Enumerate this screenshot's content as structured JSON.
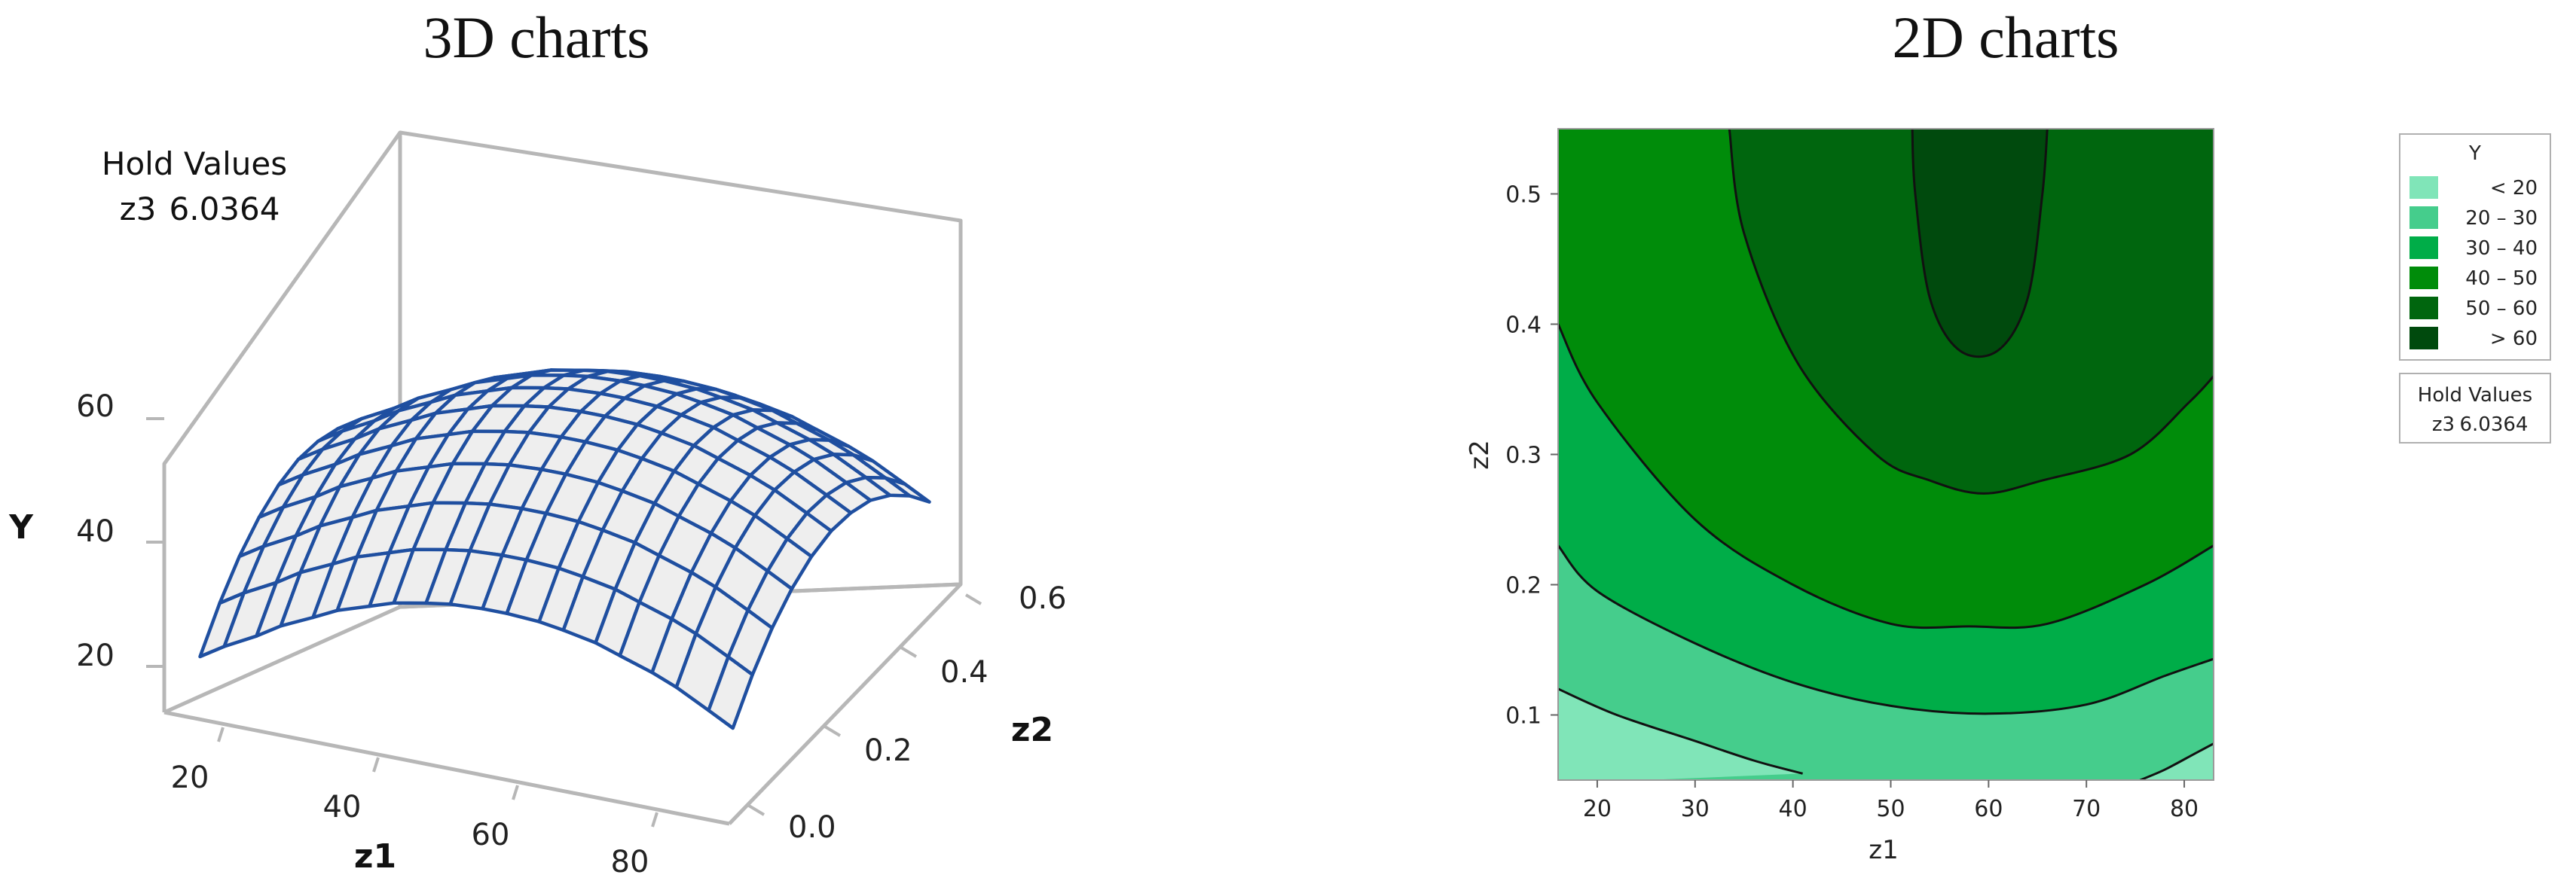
{
  "chart_data": [
    {
      "type": "surface",
      "title": "3D charts",
      "xlabel": "z1",
      "ylabel": "z2",
      "zlabel": "Y",
      "xlim": [
        15,
        85
      ],
      "ylim": [
        0.0,
        0.6
      ],
      "zlim": [
        10,
        70
      ],
      "x_ticks": [
        "20",
        "40",
        "60",
        "80"
      ],
      "y_ticks": [
        "0.0",
        "0.2",
        "0.4",
        "0.6"
      ],
      "z_ticks": [
        "20",
        "40",
        "60"
      ],
      "hold_values": {
        "title": "Hold Values",
        "label": "z3",
        "value": "6.0364"
      },
      "surface_color": "#1f4fa0",
      "grid": [
        {
          "z2": 0.05,
          "z1": [
            17,
            20,
            24,
            27,
            31,
            34,
            38,
            41,
            45,
            48,
            52,
            55,
            59,
            62,
            66,
            69,
            73,
            76,
            80,
            83
          ],
          "Y": [
            10.8,
            13.2,
            15.9,
            18.3,
            20.7,
            22.6,
            24.3,
            25.6,
            26.6,
            27.2,
            27.5,
            27.5,
            27.2,
            26.6,
            25.6,
            24.3,
            22.6,
            21.0,
            18.3,
            16.2
          ]
        },
        {
          "z2": 0.1,
          "z1": [
            17,
            20,
            24,
            27,
            31,
            34,
            38,
            41,
            45,
            48,
            52,
            55,
            59,
            62,
            66,
            69,
            73,
            76,
            80,
            83
          ],
          "Y": [
            18.0,
            20.4,
            23.1,
            25.5,
            27.9,
            29.8,
            31.5,
            32.8,
            33.8,
            34.4,
            34.7,
            34.7,
            34.4,
            33.8,
            32.8,
            31.5,
            29.8,
            28.2,
            25.5,
            23.4
          ]
        },
        {
          "z2": 0.15,
          "z1": [
            17,
            20,
            24,
            27,
            31,
            34,
            38,
            41,
            45,
            48,
            52,
            55,
            59,
            62,
            66,
            69,
            73,
            76,
            80,
            83
          ],
          "Y": [
            24.1,
            26.5,
            29.2,
            31.6,
            34.0,
            35.9,
            37.6,
            38.9,
            39.9,
            40.5,
            40.8,
            40.8,
            40.5,
            39.9,
            38.9,
            37.6,
            35.9,
            34.3,
            31.6,
            29.5
          ]
        },
        {
          "z2": 0.2,
          "z1": [
            17,
            20,
            24,
            27,
            31,
            34,
            38,
            41,
            45,
            48,
            52,
            55,
            59,
            62,
            66,
            69,
            73,
            76,
            80,
            83
          ],
          "Y": [
            29.0,
            31.4,
            34.1,
            36.5,
            38.9,
            40.8,
            42.5,
            43.8,
            44.8,
            45.4,
            45.7,
            45.7,
            45.4,
            44.8,
            43.8,
            42.5,
            40.8,
            39.2,
            36.5,
            34.4
          ]
        },
        {
          "z2": 0.25,
          "z1": [
            17,
            20,
            24,
            27,
            31,
            34,
            38,
            41,
            45,
            48,
            52,
            55,
            59,
            62,
            66,
            69,
            73,
            76,
            80,
            83
          ],
          "Y": [
            32.8,
            35.2,
            37.9,
            40.3,
            42.7,
            44.6,
            46.3,
            47.6,
            48.6,
            49.2,
            49.5,
            49.5,
            49.2,
            48.6,
            47.6,
            46.3,
            44.6,
            43.0,
            40.3,
            38.2
          ]
        },
        {
          "z2": 0.3,
          "z1": [
            17,
            20,
            24,
            27,
            31,
            34,
            38,
            41,
            45,
            48,
            52,
            55,
            59,
            62,
            66,
            69,
            73,
            76,
            80,
            83
          ],
          "Y": [
            35.5,
            37.9,
            40.6,
            43.0,
            45.4,
            47.3,
            49.0,
            50.3,
            51.3,
            51.9,
            52.2,
            52.2,
            51.9,
            51.3,
            50.3,
            49.0,
            47.3,
            45.7,
            43.0,
            40.9
          ]
        },
        {
          "z2": 0.35,
          "z1": [
            17,
            20,
            24,
            27,
            31,
            34,
            38,
            41,
            45,
            48,
            52,
            55,
            59,
            62,
            66,
            69,
            73,
            76,
            80,
            83
          ],
          "Y": [
            37.0,
            39.4,
            42.1,
            44.5,
            46.9,
            48.8,
            50.5,
            51.8,
            52.8,
            53.4,
            53.7,
            53.7,
            53.4,
            52.8,
            51.8,
            50.5,
            48.8,
            47.2,
            44.5,
            42.4
          ]
        },
        {
          "z2": 0.4,
          "z1": [
            17,
            20,
            24,
            27,
            31,
            34,
            38,
            41,
            45,
            48,
            52,
            55,
            59,
            62,
            66,
            69,
            73,
            76,
            80,
            83
          ],
          "Y": [
            37.6,
            40.0,
            42.7,
            45.1,
            47.5,
            49.4,
            51.1,
            52.4,
            53.4,
            54.0,
            54.3,
            54.3,
            54.0,
            53.4,
            52.4,
            51.1,
            49.4,
            47.8,
            45.1,
            43.0
          ]
        },
        {
          "z2": 0.45,
          "z1": [
            17,
            20,
            24,
            27,
            31,
            34,
            38,
            41,
            45,
            48,
            52,
            55,
            59,
            62,
            66,
            69,
            73,
            76,
            80,
            83
          ],
          "Y": [
            37.0,
            39.4,
            42.1,
            44.5,
            46.9,
            48.8,
            50.5,
            51.8,
            52.8,
            53.4,
            53.7,
            53.7,
            53.4,
            52.8,
            51.8,
            50.5,
            48.8,
            47.2,
            44.5,
            42.4
          ]
        },
        {
          "z2": 0.5,
          "z1": [
            17,
            20,
            24,
            27,
            31,
            34,
            38,
            41,
            45,
            48,
            52,
            55,
            59,
            62,
            66,
            69,
            73,
            76,
            80,
            83
          ],
          "Y": [
            35.5,
            37.9,
            40.6,
            43.0,
            45.4,
            47.3,
            49.0,
            50.3,
            51.3,
            51.9,
            52.2,
            52.2,
            51.9,
            51.3,
            50.3,
            49.0,
            47.3,
            45.7,
            43.0,
            40.9
          ]
        },
        {
          "z2": 0.55,
          "z1": [
            17,
            20,
            24,
            27,
            31,
            34,
            38,
            41,
            45,
            48,
            52,
            55,
            59,
            62,
            66,
            69,
            73,
            76,
            80,
            83
          ],
          "Y": [
            33.1,
            35.5,
            38.2,
            40.6,
            43.0,
            44.9,
            46.6,
            47.9,
            48.9,
            49.5,
            49.8,
            49.8,
            49.5,
            48.9,
            47.9,
            46.6,
            44.9,
            43.3,
            40.6,
            38.5
          ]
        }
      ]
    },
    {
      "type": "contour",
      "title": "2D charts",
      "xlabel": "z1",
      "ylabel": "z2",
      "xlim": [
        16,
        83
      ],
      "ylim": [
        0.05,
        0.55
      ],
      "x_ticks": [
        "20",
        "30",
        "40",
        "50",
        "60",
        "70",
        "80"
      ],
      "y_ticks": [
        "0.1",
        "0.2",
        "0.3",
        "0.4",
        "0.5"
      ],
      "legend": {
        "title": "Y",
        "position": "right",
        "levels": [
          {
            "label": "< 20",
            "color": "#80e5b8"
          },
          {
            "label": "20 – 30",
            "color": "#45cd8c"
          },
          {
            "label": "30 – 40",
            "color": "#00ad48"
          },
          {
            "label": "40 – 50",
            "color": "#008c0a"
          },
          {
            "label": "50 – 60",
            "color": "#00660e"
          },
          {
            "label": "> 60",
            "color": "#004a0d"
          }
        ]
      },
      "hold_values": {
        "title": "Hold Values",
        "label": "z3",
        "value": "6.0364"
      },
      "contours": [
        {
          "level": 60,
          "z1": [
            52.2,
            52.5,
            54.0,
            57.0,
            61.0,
            64.0,
            65.5,
            66.0
          ],
          "z2": [
            0.55,
            0.5,
            0.42,
            0.38,
            0.38,
            0.42,
            0.5,
            0.55
          ]
        },
        {
          "level": 50,
          "z1": [
            33.5,
            35.0,
            40.5,
            48.5,
            54.0,
            59.5,
            65.5,
            74.5,
            80.5,
            83.0
          ],
          "z2": [
            0.55,
            0.47,
            0.37,
            0.3,
            0.28,
            0.27,
            0.28,
            0.3,
            0.34,
            0.36
          ]
        },
        {
          "level": 40,
          "z1": [
            16.0,
            20.0,
            30.0,
            40.0,
            50.0,
            58.0,
            66.0,
            76.0,
            83.0
          ],
          "z2": [
            0.4,
            0.34,
            0.25,
            0.2,
            0.17,
            0.168,
            0.17,
            0.2,
            0.23
          ]
        },
        {
          "level": 30,
          "z1": [
            16.0,
            20.0,
            30.0,
            40.0,
            50.0,
            60.0,
            70.0,
            78.0,
            83.0
          ],
          "z2": [
            0.23,
            0.195,
            0.155,
            0.125,
            0.107,
            0.101,
            0.108,
            0.13,
            0.143
          ]
        },
        {
          "level": 20,
          "z1": [
            16.0,
            22.0,
            30.0,
            36.0,
            41.0
          ],
          "z2": [
            0.12,
            0.1,
            0.08,
            0.065,
            0.055
          ]
        },
        {
          "level": 20,
          "z1": [
            75.5,
            78.0,
            81.0,
            83.0
          ],
          "z2": [
            0.05,
            0.058,
            0.07,
            0.078
          ]
        }
      ]
    }
  ]
}
